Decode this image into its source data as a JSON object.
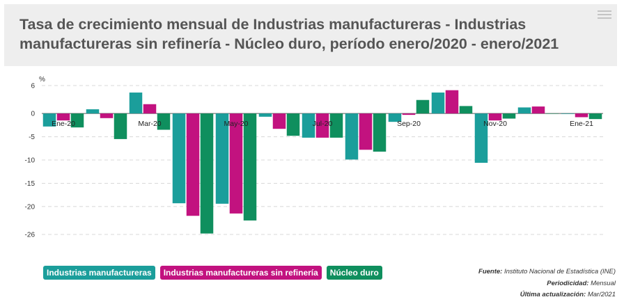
{
  "header": {
    "title": "Tasa de crecimiento mensual de Industrias manufactureras - Industrias manufactureras sin refinería - Núcleo duro, período enero/2020 - enero/2021",
    "menu_icon": "hamburger-menu-icon"
  },
  "chart_data": {
    "type": "bar",
    "unit_label": "%",
    "y_ticks": [
      6,
      0,
      -5,
      -10,
      -15,
      -20,
      -26
    ],
    "ylim": [
      -26,
      6
    ],
    "grid": true,
    "categories": [
      "Ene-20",
      "Feb-20",
      "Mar-20",
      "Abr-20",
      "May-20",
      "Jun-20",
      "Jul-20",
      "Ago-20",
      "Sep-20",
      "Oct-20",
      "Nov-20",
      "Dic-20",
      "Ene-21"
    ],
    "x_tick_labels": [
      "Ene-20",
      "",
      "Mar-20",
      "",
      "May-20",
      "",
      "Jul-20",
      "",
      "Sep-20",
      "",
      "Nov-20",
      "",
      "Ene-21"
    ],
    "series": [
      {
        "name": "Industrias manufactureras",
        "color": "#1b9e9b",
        "values": [
          -2.8,
          0.9,
          4.5,
          -19.3,
          -19.4,
          -0.7,
          -5.2,
          -9.9,
          -1.8,
          4.5,
          -10.6,
          1.3,
          -0.1
        ]
      },
      {
        "name": "Industrias manufactureras sin refinería",
        "color": "#c2127f",
        "values": [
          -1.5,
          -1.0,
          2.0,
          -22.0,
          -21.5,
          -3.3,
          -5.2,
          -7.8,
          -0.3,
          5.0,
          -1.5,
          1.5,
          -0.8
        ]
      },
      {
        "name": "Núcleo duro",
        "color": "#0f8f5e",
        "values": [
          -3.0,
          -5.5,
          -3.5,
          -25.8,
          -23.0,
          -4.8,
          -5.2,
          -8.2,
          2.9,
          1.6,
          -1.1,
          0.0,
          -1.2
        ]
      }
    ]
  },
  "footer": {
    "source_label": "Fuente:",
    "source_value": "Instituto Nacional de Estadística (INE)",
    "periodicity_label": "Periodicidad:",
    "periodicity_value": "Mensual",
    "updated_label": "Última actualización:",
    "updated_value": "Mar/2021"
  }
}
